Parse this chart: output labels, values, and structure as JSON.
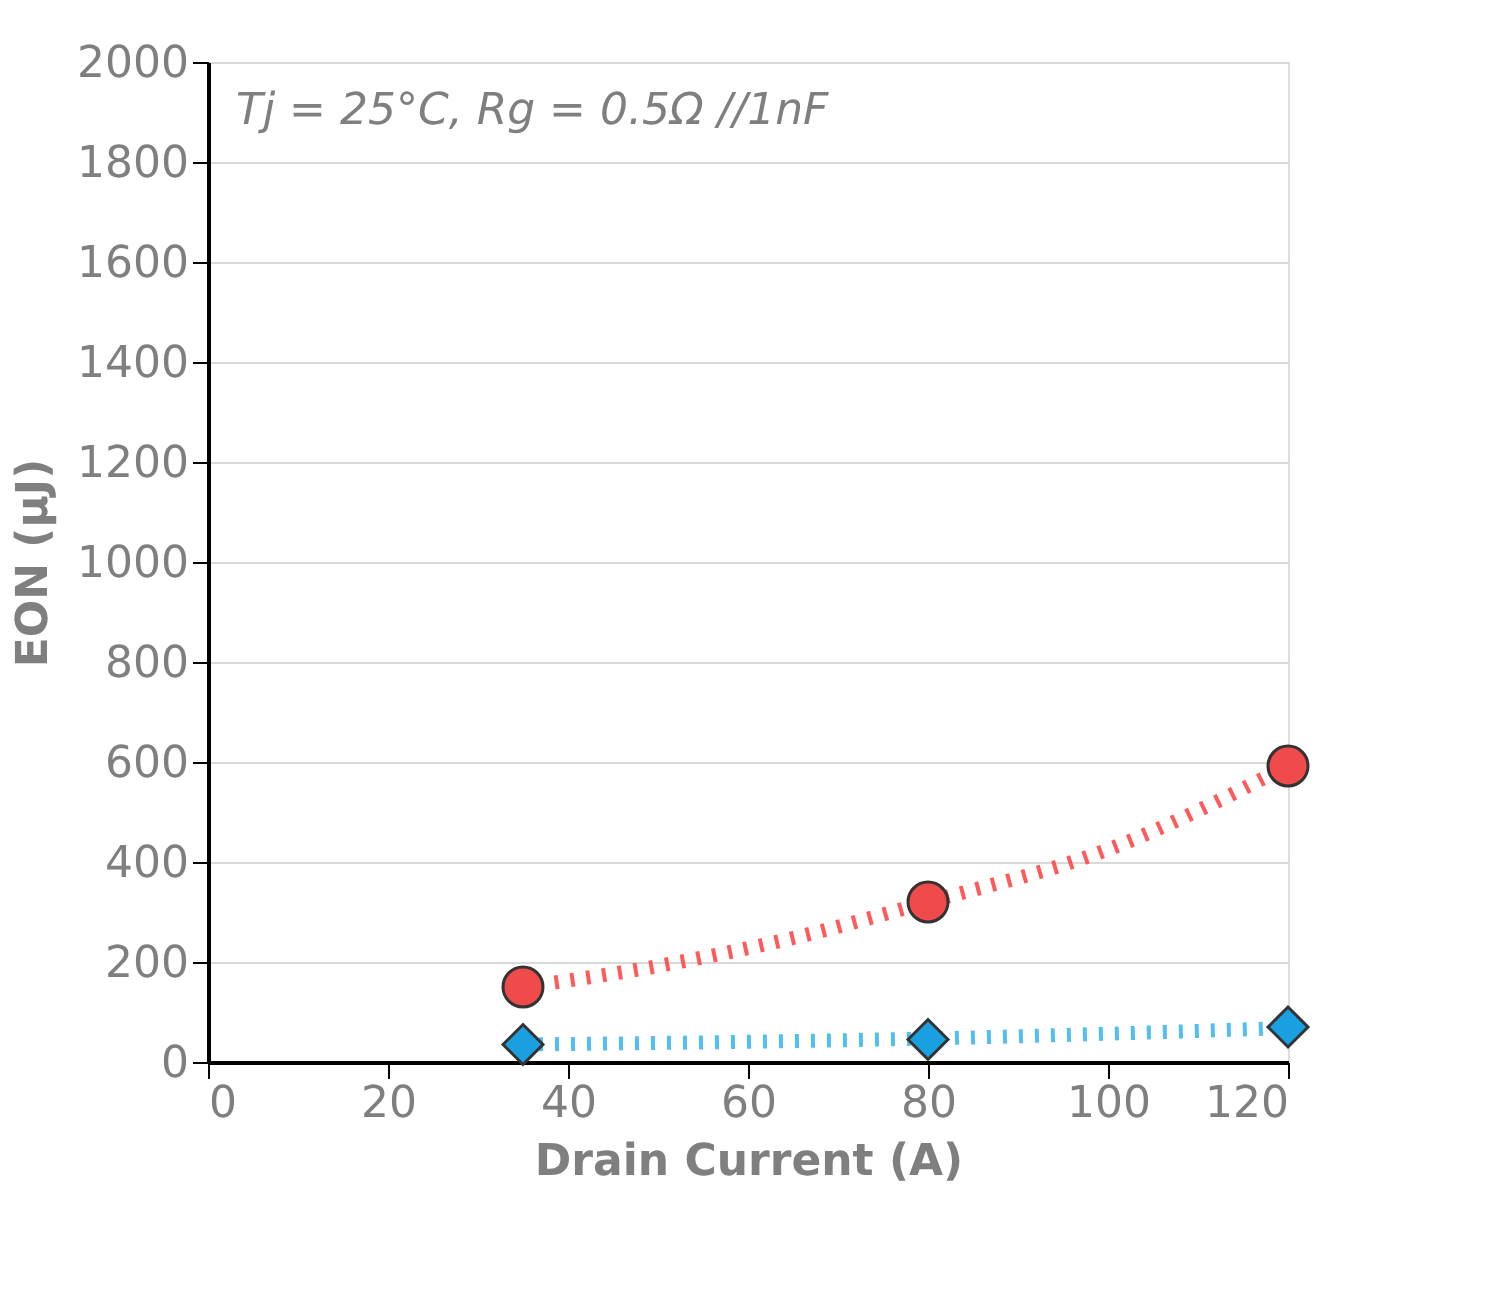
{
  "chart_data": {
    "type": "scatter",
    "xlabel": "Drain Current (A)",
    "ylabel": "EON (µJ)",
    "annotations": [
      "Tj = 25°C, Rg = 0.5Ω //1nF"
    ],
    "xlim": [
      0,
      120
    ],
    "xticks": [
      0,
      20,
      40,
      60,
      80,
      100,
      120
    ],
    "ylim": [
      0,
      2000
    ],
    "yticks": [
      0,
      200,
      400,
      600,
      800,
      1000,
      1200,
      1400,
      1600,
      1800,
      2000
    ],
    "grid": "y",
    "series": [
      {
        "type": "line",
        "line_style": "dotted",
        "color": "#ff4848",
        "x": [
          35,
          50,
          65,
          80,
          100,
          120
        ],
        "values": [
          150,
          192,
          248,
          320,
          425,
          592
        ]
      },
      {
        "type": "line",
        "line_style": "dotted",
        "color": "#40b8ec",
        "x": [
          35,
          80,
          120
        ],
        "values": [
          35,
          47,
          68
        ]
      },
      {
        "marker": "circle",
        "color": "#f04a4a",
        "x": [
          35,
          80,
          120
        ],
        "values": [
          150,
          320,
          592
        ]
      },
      {
        "marker": "diamond",
        "color": "#1aa0e0",
        "x": [
          35,
          80,
          120
        ],
        "values": [
          35,
          45,
          70
        ]
      }
    ]
  }
}
